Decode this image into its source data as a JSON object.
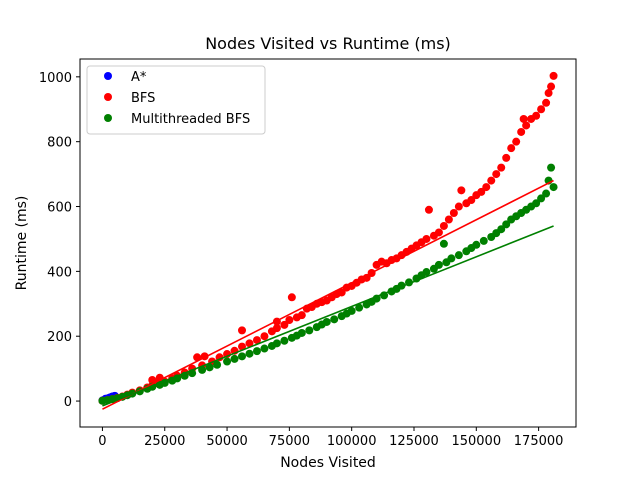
{
  "chart_data": {
    "type": "scatter",
    "title": "Nodes Visited vs Runtime (ms)",
    "xlabel": "Nodes Visited",
    "ylabel": "Runtime (ms)",
    "xlim": [
      -9000,
      190000
    ],
    "ylim": [
      -80,
      1055
    ],
    "xticks": [
      0,
      25000,
      50000,
      75000,
      100000,
      125000,
      150000,
      175000
    ],
    "yticks": [
      0,
      200,
      400,
      600,
      800,
      1000
    ],
    "grid": false,
    "legend_position": "top-left",
    "series": [
      {
        "name": "A*",
        "color": "#0000ff",
        "points": [
          [
            0,
            2
          ],
          [
            500,
            3
          ],
          [
            1000,
            5
          ],
          [
            1500,
            6
          ],
          [
            2000,
            8
          ],
          [
            2500,
            9
          ],
          [
            3000,
            11
          ],
          [
            3500,
            12
          ],
          [
            4000,
            14
          ],
          [
            4500,
            15
          ],
          [
            5000,
            16
          ],
          [
            1200,
            7
          ],
          [
            2800,
            10
          ],
          [
            3800,
            13
          ]
        ]
      },
      {
        "name": "BFS",
        "color": "#ff0000",
        "points": [
          [
            0,
            1
          ],
          [
            2000,
            3
          ],
          [
            4000,
            6
          ],
          [
            6000,
            10
          ],
          [
            8000,
            14
          ],
          [
            10000,
            20
          ],
          [
            12000,
            26
          ],
          [
            15000,
            33
          ],
          [
            18000,
            42
          ],
          [
            20000,
            48
          ],
          [
            20000,
            65
          ],
          [
            22000,
            55
          ],
          [
            23000,
            72
          ],
          [
            25000,
            60
          ],
          [
            28000,
            70
          ],
          [
            30000,
            78
          ],
          [
            33000,
            88
          ],
          [
            36000,
            100
          ],
          [
            38000,
            135
          ],
          [
            40000,
            110
          ],
          [
            41000,
            138
          ],
          [
            44000,
            122
          ],
          [
            47000,
            135
          ],
          [
            50000,
            145
          ],
          [
            53000,
            155
          ],
          [
            56000,
            168
          ],
          [
            56000,
            218
          ],
          [
            59000,
            178
          ],
          [
            62000,
            188
          ],
          [
            65000,
            200
          ],
          [
            68000,
            215
          ],
          [
            70000,
            225
          ],
          [
            70000,
            245
          ],
          [
            73000,
            235
          ],
          [
            75000,
            250
          ],
          [
            76000,
            320
          ],
          [
            78000,
            258
          ],
          [
            80000,
            265
          ],
          [
            82000,
            285
          ],
          [
            84000,
            290
          ],
          [
            86000,
            300
          ],
          [
            88000,
            305
          ],
          [
            90000,
            310
          ],
          [
            92000,
            320
          ],
          [
            94000,
            330
          ],
          [
            96000,
            335
          ],
          [
            98000,
            350
          ],
          [
            100000,
            355
          ],
          [
            102000,
            365
          ],
          [
            104000,
            375
          ],
          [
            106000,
            380
          ],
          [
            108000,
            395
          ],
          [
            110000,
            420
          ],
          [
            112000,
            430
          ],
          [
            114000,
            425
          ],
          [
            116000,
            435
          ],
          [
            118000,
            440
          ],
          [
            120000,
            450
          ],
          [
            122000,
            460
          ],
          [
            124000,
            470
          ],
          [
            126000,
            480
          ],
          [
            128000,
            490
          ],
          [
            130000,
            500
          ],
          [
            131000,
            590
          ],
          [
            133000,
            510
          ],
          [
            135000,
            520
          ],
          [
            137000,
            540
          ],
          [
            139000,
            560
          ],
          [
            141000,
            580
          ],
          [
            143000,
            600
          ],
          [
            144000,
            650
          ],
          [
            146000,
            610
          ],
          [
            148000,
            620
          ],
          [
            150000,
            635
          ],
          [
            152000,
            645
          ],
          [
            154000,
            660
          ],
          [
            156000,
            680
          ],
          [
            158000,
            700
          ],
          [
            160000,
            720
          ],
          [
            162000,
            750
          ],
          [
            164000,
            780
          ],
          [
            166000,
            800
          ],
          [
            168000,
            830
          ],
          [
            169000,
            870
          ],
          [
            170000,
            850
          ],
          [
            172000,
            870
          ],
          [
            174000,
            880
          ],
          [
            176000,
            900
          ],
          [
            178000,
            920
          ],
          [
            179000,
            950
          ],
          [
            180000,
            970
          ],
          [
            181000,
            1003
          ]
        ]
      },
      {
        "name": "Multithreaded BFS",
        "color": "#008000",
        "points": [
          [
            0,
            1
          ],
          [
            2000,
            3
          ],
          [
            4000,
            6
          ],
          [
            6000,
            9
          ],
          [
            8000,
            13
          ],
          [
            10000,
            18
          ],
          [
            12000,
            23
          ],
          [
            15000,
            30
          ],
          [
            18000,
            38
          ],
          [
            20000,
            44
          ],
          [
            23000,
            50
          ],
          [
            25000,
            56
          ],
          [
            28000,
            63
          ],
          [
            30000,
            70
          ],
          [
            33000,
            78
          ],
          [
            36000,
            86
          ],
          [
            40000,
            96
          ],
          [
            43000,
            104
          ],
          [
            46000,
            112
          ],
          [
            50000,
            122
          ],
          [
            53000,
            130
          ],
          [
            56000,
            138
          ],
          [
            59000,
            146
          ],
          [
            62000,
            154
          ],
          [
            65000,
            162
          ],
          [
            68000,
            170
          ],
          [
            70000,
            178
          ],
          [
            73000,
            186
          ],
          [
            76000,
            195
          ],
          [
            78000,
            202
          ],
          [
            80000,
            210
          ],
          [
            83000,
            218
          ],
          [
            86000,
            228
          ],
          [
            88000,
            236
          ],
          [
            90000,
            244
          ],
          [
            93000,
            252
          ],
          [
            96000,
            262
          ],
          [
            98000,
            270
          ],
          [
            100000,
            278
          ],
          [
            103000,
            288
          ],
          [
            106000,
            298
          ],
          [
            108000,
            306
          ],
          [
            110000,
            316
          ],
          [
            113000,
            326
          ],
          [
            116000,
            338
          ],
          [
            118000,
            346
          ],
          [
            120000,
            356
          ],
          [
            123000,
            366
          ],
          [
            126000,
            378
          ],
          [
            128000,
            388
          ],
          [
            130000,
            398
          ],
          [
            133000,
            408
          ],
          [
            135000,
            420
          ],
          [
            137000,
            485
          ],
          [
            138000,
            428
          ],
          [
            140000,
            440
          ],
          [
            143000,
            450
          ],
          [
            146000,
            462
          ],
          [
            148000,
            472
          ],
          [
            150000,
            482
          ],
          [
            153000,
            494
          ],
          [
            156000,
            506
          ],
          [
            158000,
            518
          ],
          [
            160000,
            530
          ],
          [
            162000,
            545
          ],
          [
            164000,
            560
          ],
          [
            166000,
            570
          ],
          [
            168000,
            580
          ],
          [
            170000,
            590
          ],
          [
            172000,
            600
          ],
          [
            174000,
            610
          ],
          [
            176000,
            625
          ],
          [
            178000,
            640
          ],
          [
            179000,
            680
          ],
          [
            180000,
            720
          ],
          [
            181000,
            660
          ]
        ]
      }
    ],
    "fit_lines": [
      {
        "color": "#ff0000",
        "from": [
          0,
          -25
        ],
        "to": [
          181000,
          680
        ]
      },
      {
        "color": "#008000",
        "from": [
          0,
          -15
        ],
        "to": [
          181000,
          540
        ]
      }
    ]
  }
}
